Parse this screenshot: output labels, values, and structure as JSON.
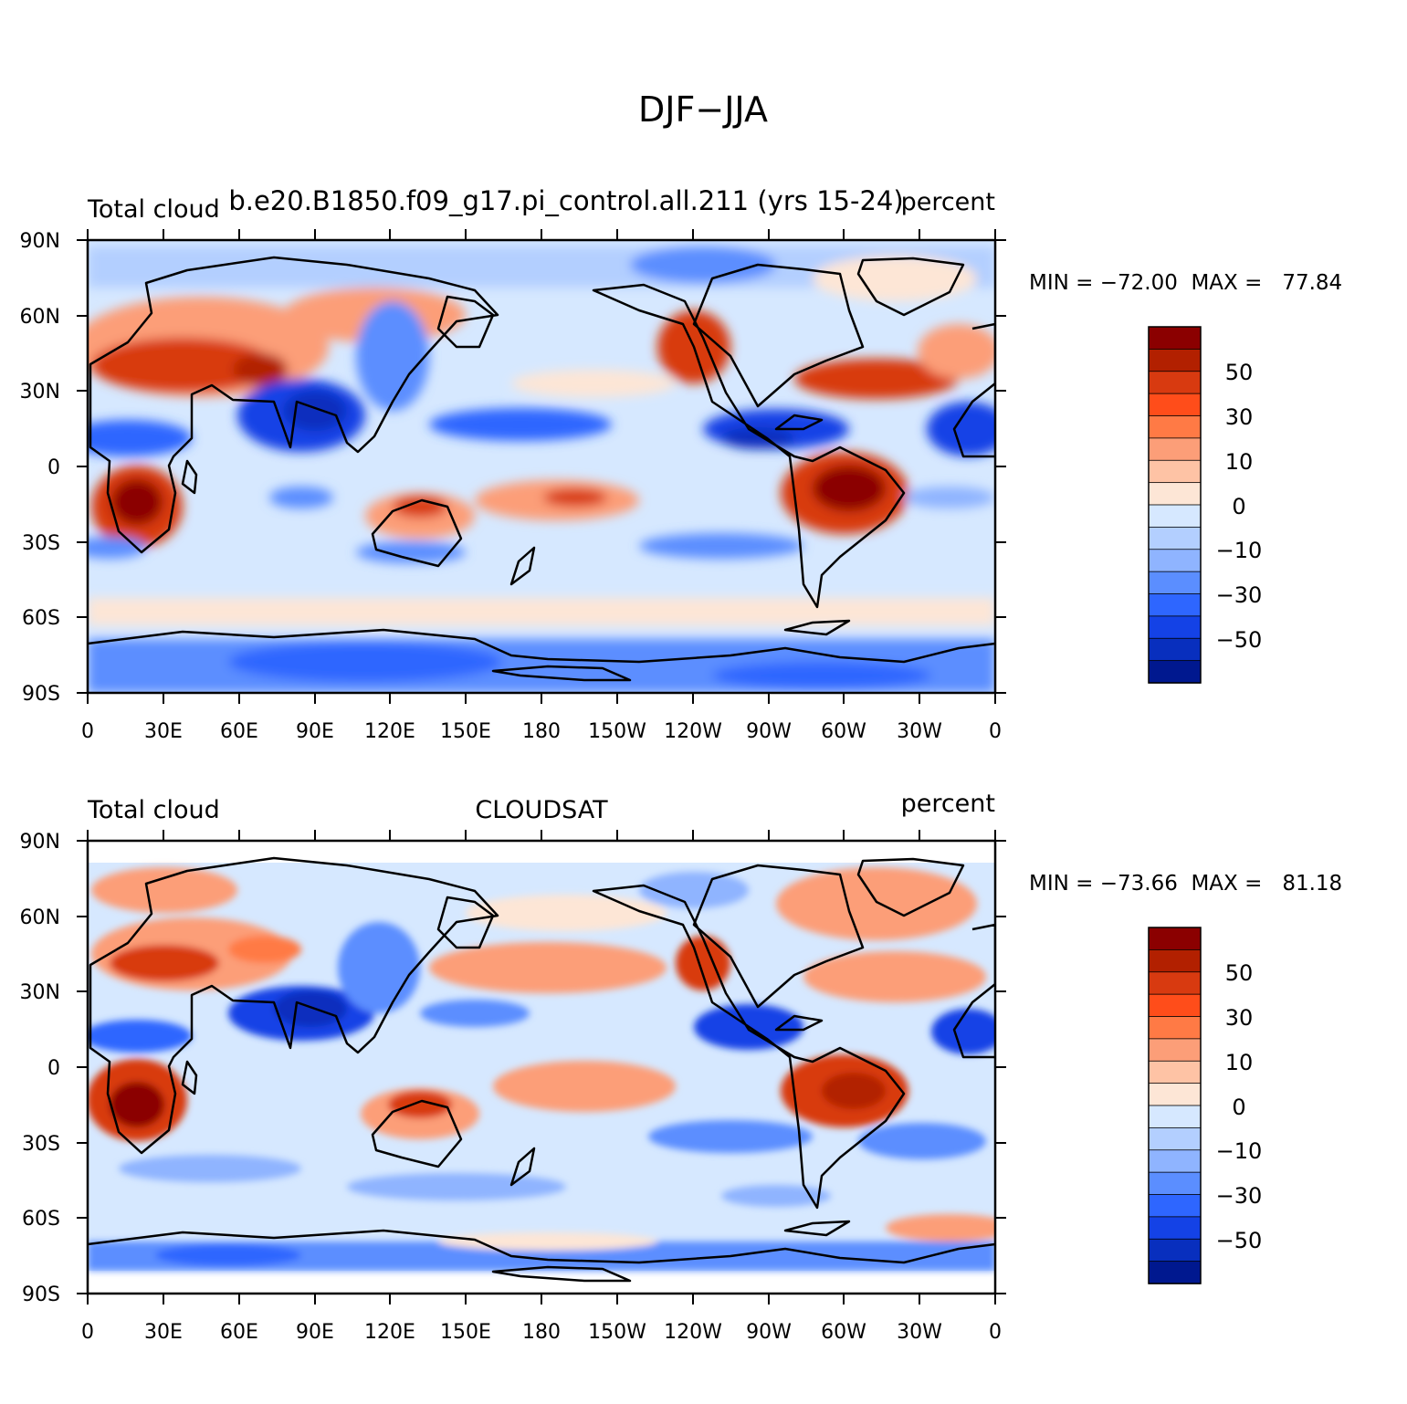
{
  "title": "DJF−JJA",
  "panels": [
    {
      "left_label": "Total cloud",
      "center_label": "b.e20.B1850.f09_g17.pi_control.all.211 (yrs 15-24)",
      "right_label": "percent",
      "stats": "MIN = −72.00  MAX =   77.84",
      "cloudsat_cap": false
    },
    {
      "left_label": "Total cloud",
      "center_label": "CLOUDSAT",
      "right_label": "percent",
      "stats": "MIN = −73.66  MAX =   81.18",
      "cloudsat_cap": true
    }
  ],
  "lat_labels": [
    "90N",
    "60N",
    "30N",
    "0",
    "30S",
    "60S",
    "90S"
  ],
  "lon_labels": [
    "0",
    "30E",
    "60E",
    "90E",
    "120E",
    "150E",
    "180",
    "150W",
    "120W",
    "90W",
    "60W",
    "30W",
    "0"
  ],
  "colorbar": {
    "labels": [
      "50",
      "30",
      "10",
      "0",
      "−10",
      "−30",
      "−50"
    ],
    "colors": [
      "#8b0000",
      "#b22000",
      "#d83a10",
      "#ff4d1a",
      "#ff7a45",
      "#fc9e78",
      "#fec3a5",
      "#fde6d6",
      "#d6e8ff",
      "#b3cfff",
      "#8fb4ff",
      "#5b8eff",
      "#2e66ff",
      "#1442e6",
      "#082fbe",
      "#00188f"
    ]
  }
}
